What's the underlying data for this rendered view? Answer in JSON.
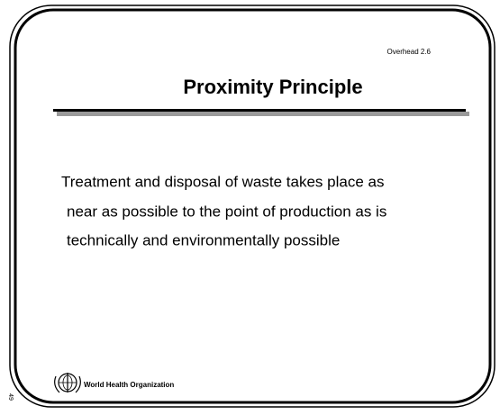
{
  "slide": {
    "overhead": "Overhead 2.6",
    "title": "Proximity Principle",
    "body_lines": [
      "Treatment and disposal of waste takes place as",
      "near as possible to the point of production as is",
      "technically and environmentally possible"
    ],
    "footer": "World Health Organization",
    "page_number": "49"
  }
}
